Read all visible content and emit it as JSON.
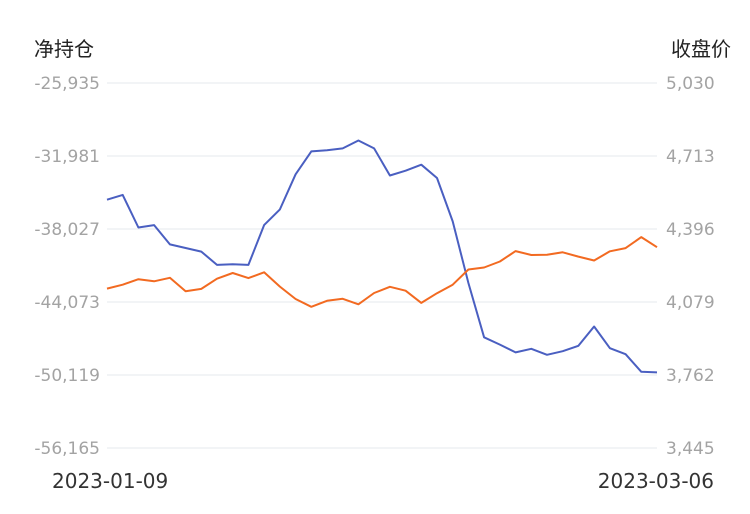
{
  "chart_data": {
    "type": "line",
    "left_axis_title": "净持仓",
    "right_axis_title": "收盘价",
    "x_start_label": "2023-01-09",
    "x_end_label": "2023-03-06",
    "left_ticks": [
      "-25,935",
      "-31,981",
      "-38,027",
      "-44,073",
      "-50,119",
      "-56,165"
    ],
    "right_ticks": [
      "5,030",
      "4,713",
      "4,396",
      "4,079",
      "3,762",
      "3,445"
    ],
    "left_ylim": [
      -56165,
      -25935
    ],
    "right_ylim": [
      3445,
      5030
    ],
    "grid": true,
    "series": [
      {
        "axis": "left",
        "color": "#4a5fc1",
        "values": [
          -35600,
          -35200,
          -37900,
          -37700,
          -39300,
          -39600,
          -39900,
          -41000,
          -40950,
          -41000,
          -37700,
          -36400,
          -33500,
          -31600,
          -31500,
          -31350,
          -30700,
          -31350,
          -33600,
          -33200,
          -32700,
          -33800,
          -37400,
          -42500,
          -47000,
          -47600,
          -48250,
          -47950,
          -48450,
          -48150,
          -47700,
          -46100,
          -47900,
          -48400,
          -49850,
          -49900
        ]
      },
      {
        "axis": "right",
        "color": "#f26a21",
        "values": [
          4137,
          4154,
          4178,
          4169,
          4184,
          4126,
          4136,
          4180,
          4205,
          4183,
          4208,
          4146,
          4092,
          4058,
          4084,
          4093,
          4069,
          4118,
          4145,
          4128,
          4075,
          4117,
          4154,
          4220,
          4229,
          4255,
          4300,
          4283,
          4284,
          4295,
          4276,
          4259,
          4299,
          4313,
          4361,
          4317
        ]
      }
    ]
  }
}
